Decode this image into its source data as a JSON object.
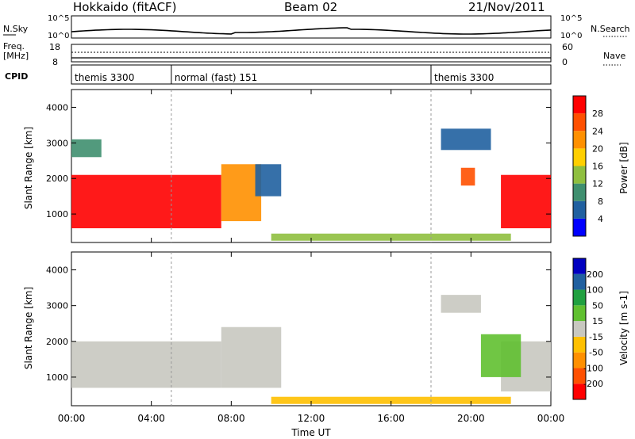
{
  "header": {
    "station": "Hokkaido (fitACF)",
    "beam": "Beam 02",
    "date": "21/Nov/2011"
  },
  "side_labels": {
    "nsky": "N.Sky",
    "freq": "Freq.",
    "freq_unit": "[MHz]",
    "cpid": "CPID",
    "nsearch": "N.Search",
    "nave": "Nave"
  },
  "noise_panel": {
    "left_ticks": [
      "10^5",
      "10^0"
    ],
    "right_ticks": [
      "10^5",
      "10^0"
    ]
  },
  "freq_panel": {
    "left_ticks": [
      "18",
      "8"
    ],
    "right_ticks": [
      "60",
      "0"
    ]
  },
  "cpid_segments": [
    {
      "label": "themis 3300",
      "start_hour": 0
    },
    {
      "label": "normal (fast) 151",
      "start_hour": 5
    },
    {
      "label": "themis 3300",
      "start_hour": 18
    }
  ],
  "xaxis": {
    "label": "Time UT",
    "ticks": [
      "00:00",
      "04:00",
      "08:00",
      "12:00",
      "16:00",
      "20:00",
      "00:00"
    ]
  },
  "colors": {
    "power_scale": [
      "#0000ff",
      "#2060a0",
      "#3f8f6f",
      "#8fbf3f",
      "#ffcf00",
      "#ff9000",
      "#ff5000",
      "#ff0000"
    ],
    "velocity_scale": [
      "#ff0000",
      "#ff5000",
      "#ff9000",
      "#ffc000",
      "#c8c8c0",
      "#60c030",
      "#20a040",
      "#2060a0",
      "#0000c0"
    ]
  },
  "chart_data": [
    {
      "type": "heatmap",
      "name": "power",
      "ylabel": "Slant Range [km]",
      "yticks": [
        "1000",
        "2000",
        "3000",
        "4000"
      ],
      "ylim": [
        200,
        4500
      ],
      "xlim": [
        0,
        24
      ],
      "colorbar_label": "Power [dB]",
      "colorbar_ticks": [
        "4",
        "8",
        "12",
        "16",
        "20",
        "24",
        "28"
      ],
      "regions": [
        {
          "x0": 0,
          "x1": 7.5,
          "y0": 600,
          "y1": 2100,
          "level": 7
        },
        {
          "x0": 7.5,
          "x1": 9.5,
          "y0": 800,
          "y1": 2400,
          "level": 5
        },
        {
          "x0": 9.2,
          "x1": 10.5,
          "y0": 1500,
          "y1": 2400,
          "level": 1
        },
        {
          "x0": 21.5,
          "x1": 24,
          "y0": 600,
          "y1": 2100,
          "level": 7
        },
        {
          "x0": 18.5,
          "x1": 21,
          "y0": 2800,
          "y1": 3400,
          "level": 1
        },
        {
          "x0": 19.5,
          "x1": 20.2,
          "y0": 1800,
          "y1": 2300,
          "level": 6
        },
        {
          "x0": 10,
          "x1": 22,
          "y0": 250,
          "y1": 450,
          "level": 3
        },
        {
          "x0": 0,
          "x1": 1.5,
          "y0": 2600,
          "y1": 3100,
          "level": 2
        }
      ]
    },
    {
      "type": "heatmap",
      "name": "velocity",
      "ylabel": "Slant Range [km]",
      "yticks": [
        "1000",
        "2000",
        "3000",
        "4000"
      ],
      "ylim": [
        200,
        4500
      ],
      "xlim": [
        0,
        24
      ],
      "colorbar_label": "Velocity [m s-1]",
      "colorbar_ticks": [
        "-200",
        "-100",
        "-50",
        "-15",
        "15",
        "50",
        "100",
        "200"
      ],
      "regions": [
        {
          "x0": 0,
          "x1": 7.5,
          "y0": 700,
          "y1": 2000,
          "level": 4
        },
        {
          "x0": 7.5,
          "x1": 10.5,
          "y0": 700,
          "y1": 2400,
          "level": 4
        },
        {
          "x0": 21.5,
          "x1": 24,
          "y0": 600,
          "y1": 2000,
          "level": 4
        },
        {
          "x0": 20.5,
          "x1": 22.5,
          "y0": 1000,
          "y1": 2200,
          "level": 5
        },
        {
          "x0": 18.5,
          "x1": 20.5,
          "y0": 2800,
          "y1": 3300,
          "level": 4
        },
        {
          "x0": 10,
          "x1": 22,
          "y0": 250,
          "y1": 450,
          "level": 3
        }
      ]
    }
  ]
}
